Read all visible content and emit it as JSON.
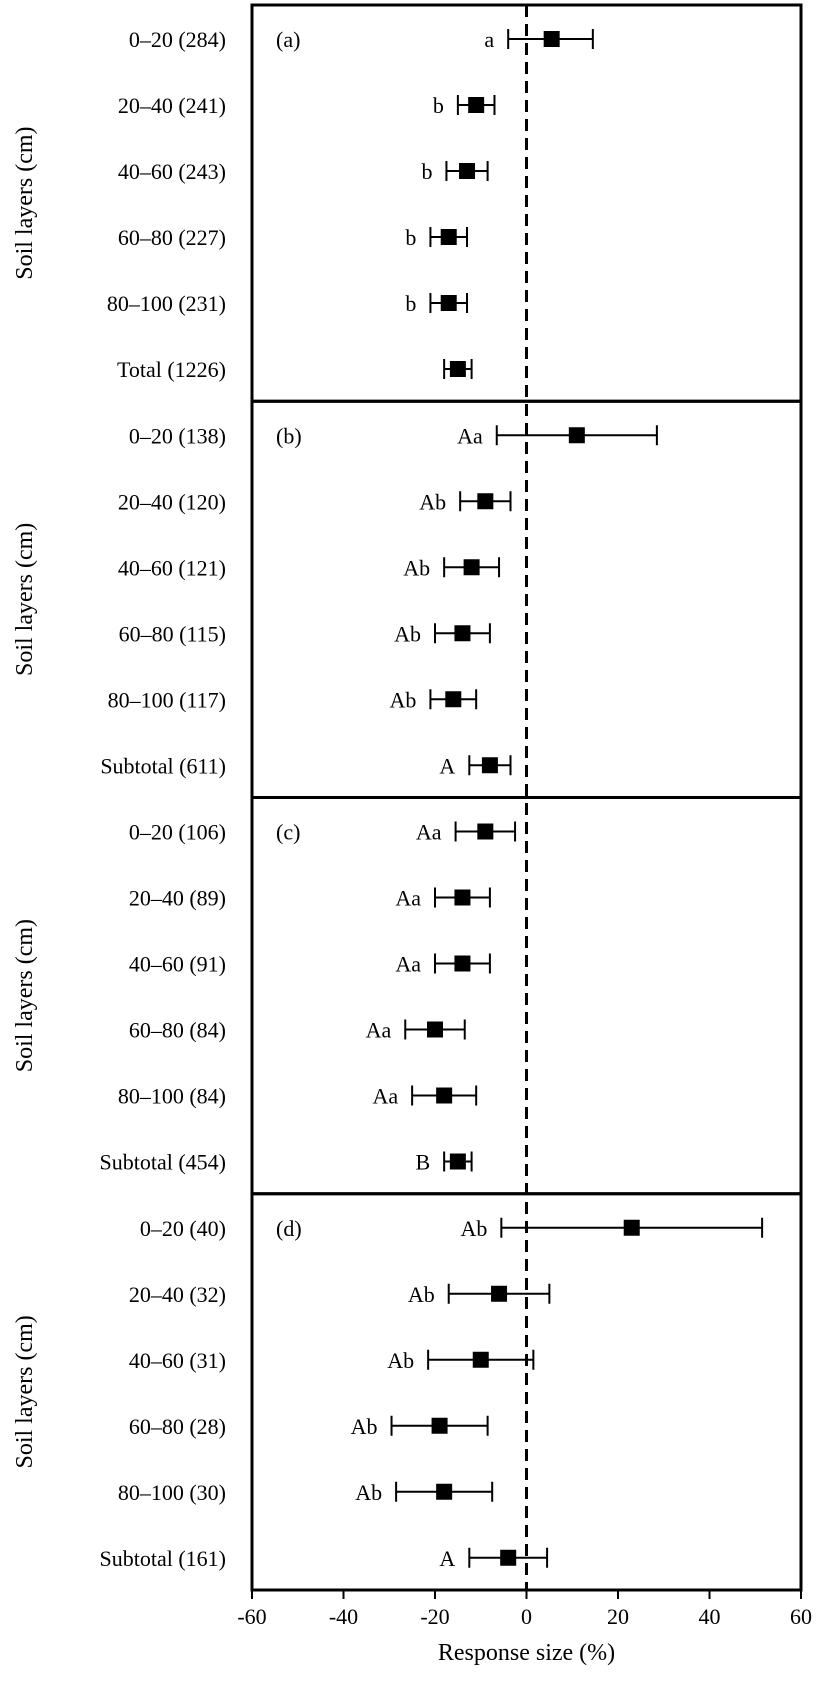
{
  "chart_data": {
    "type": "scatter",
    "variant": "forest-plot",
    "xlabel": "Response size (%)",
    "xlim": [
      -60,
      60
    ],
    "xticks": [
      -60,
      -40,
      -20,
      0,
      20,
      40,
      60
    ],
    "reference_line": 0,
    "grid": false,
    "panels": [
      {
        "label": "(a)",
        "ylabel": "Soil layers (cm)",
        "rows": [
          {
            "category": "0–20 (284)",
            "mean": 5.5,
            "ci_low": -4.0,
            "ci_high": 14.5,
            "letter": "a"
          },
          {
            "category": "20–40 (241)",
            "mean": -11.0,
            "ci_low": -15.0,
            "ci_high": -7.0,
            "letter": "b"
          },
          {
            "category": "40–60 (243)",
            "mean": -13.0,
            "ci_low": -17.5,
            "ci_high": -8.5,
            "letter": "b"
          },
          {
            "category": "60–80 (227)",
            "mean": -17.0,
            "ci_low": -21.0,
            "ci_high": -13.0,
            "letter": "b"
          },
          {
            "category": "80–100 (231)",
            "mean": -17.0,
            "ci_low": -21.0,
            "ci_high": -13.0,
            "letter": "b"
          },
          {
            "category": "Total (1226)",
            "mean": -15.0,
            "ci_low": -18.0,
            "ci_high": -12.0,
            "letter": ""
          }
        ]
      },
      {
        "label": "(b)",
        "ylabel": "Soil layers (cm)",
        "rows": [
          {
            "category": "0–20 (138)",
            "mean": 11.0,
            "ci_low": -6.5,
            "ci_high": 28.5,
            "letter": "Aa"
          },
          {
            "category": "20–40 (120)",
            "mean": -9.0,
            "ci_low": -14.5,
            "ci_high": -3.5,
            "letter": "Ab"
          },
          {
            "category": "40–60 (121)",
            "mean": -12.0,
            "ci_low": -18.0,
            "ci_high": -6.0,
            "letter": "Ab"
          },
          {
            "category": "60–80 (115)",
            "mean": -14.0,
            "ci_low": -20.0,
            "ci_high": -8.0,
            "letter": "Ab"
          },
          {
            "category": "80–100 (117)",
            "mean": -16.0,
            "ci_low": -21.0,
            "ci_high": -11.0,
            "letter": "Ab"
          },
          {
            "category": "Subtotal (611)",
            "mean": -8.0,
            "ci_low": -12.5,
            "ci_high": -3.5,
            "letter": "A"
          }
        ]
      },
      {
        "label": "(c)",
        "ylabel": "Soil layers (cm)",
        "rows": [
          {
            "category": "0–20 (106)",
            "mean": -9.0,
            "ci_low": -15.5,
            "ci_high": -2.5,
            "letter": "Aa"
          },
          {
            "category": "20–40 (89)",
            "mean": -14.0,
            "ci_low": -20.0,
            "ci_high": -8.0,
            "letter": "Aa"
          },
          {
            "category": "40–60 (91)",
            "mean": -14.0,
            "ci_low": -20.0,
            "ci_high": -8.0,
            "letter": "Aa"
          },
          {
            "category": "60–80 (84)",
            "mean": -20.0,
            "ci_low": -26.5,
            "ci_high": -13.5,
            "letter": "Aa"
          },
          {
            "category": "80–100 (84)",
            "mean": -18.0,
            "ci_low": -25.0,
            "ci_high": -11.0,
            "letter": "Aa"
          },
          {
            "category": "Subtotal (454)",
            "mean": -15.0,
            "ci_low": -18.0,
            "ci_high": -12.0,
            "letter": "B"
          }
        ]
      },
      {
        "label": "(d)",
        "ylabel": "Soil layers (cm)",
        "rows": [
          {
            "category": "0–20 (40)",
            "mean": 23.0,
            "ci_low": -5.5,
            "ci_high": 51.5,
            "letter": "Ab"
          },
          {
            "category": "20–40 (32)",
            "mean": -6.0,
            "ci_low": -17.0,
            "ci_high": 5.0,
            "letter": "Ab"
          },
          {
            "category": "40–60 (31)",
            "mean": -10.0,
            "ci_low": -21.5,
            "ci_high": 1.5,
            "letter": "Ab"
          },
          {
            "category": "60–80 (28)",
            "mean": -19.0,
            "ci_low": -29.5,
            "ci_high": -8.5,
            "letter": "Ab"
          },
          {
            "category": "80–100 (30)",
            "mean": -18.0,
            "ci_low": -28.5,
            "ci_high": -7.5,
            "letter": "Ab"
          },
          {
            "category": "Subtotal (161)",
            "mean": -4.0,
            "ci_low": -12.5,
            "ci_high": 4.5,
            "letter": "A"
          }
        ]
      }
    ]
  }
}
